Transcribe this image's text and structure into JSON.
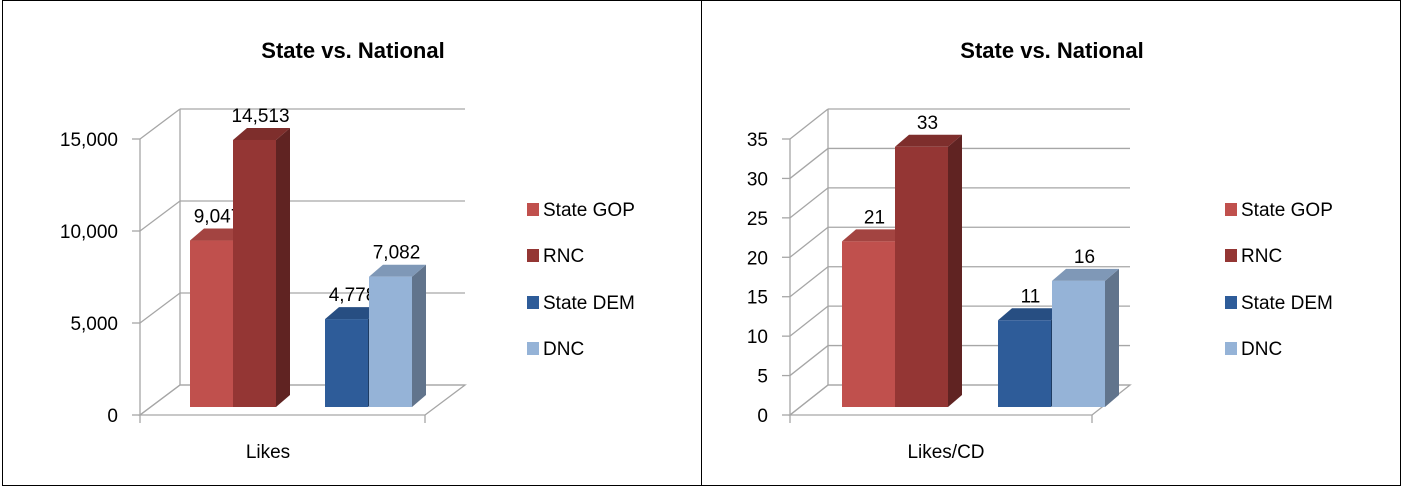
{
  "chart_data": [
    {
      "type": "bar",
      "title": "State vs. National",
      "categories": [
        "Likes"
      ],
      "series": [
        {
          "name": "State GOP",
          "values": [
            9047
          ],
          "label": "9,047",
          "color": "#C0504D"
        },
        {
          "name": "RNC",
          "values": [
            14513
          ],
          "label": "14,513",
          "color": "#943634"
        },
        {
          "name": "State DEM",
          "values": [
            4778
          ],
          "label": "4,778",
          "color": "#2E5C99"
        },
        {
          "name": "DNC",
          "values": [
            7082
          ],
          "label": "7,082",
          "color": "#95B3D7"
        }
      ],
      "ylim": [
        0,
        15000
      ],
      "y_ticks": [
        0,
        5000,
        10000,
        15000
      ],
      "y_tick_labels": [
        "0",
        "5,000",
        "10,000",
        "15,000"
      ],
      "grid": true,
      "legend_position": "right",
      "style": "3d-clustered-column"
    },
    {
      "type": "bar",
      "title": "State vs. National",
      "categories": [
        "Likes/CD"
      ],
      "series": [
        {
          "name": "State GOP",
          "values": [
            21
          ],
          "label": "21",
          "color": "#C0504D"
        },
        {
          "name": "RNC",
          "values": [
            33
          ],
          "label": "33",
          "color": "#943634"
        },
        {
          "name": "State DEM",
          "values": [
            11
          ],
          "label": "11",
          "color": "#2E5C99"
        },
        {
          "name": "DNC",
          "values": [
            16
          ],
          "label": "16",
          "color": "#95B3D7"
        }
      ],
      "ylim": [
        0,
        35
      ],
      "y_ticks": [
        0,
        5,
        10,
        15,
        20,
        25,
        30,
        35
      ],
      "y_tick_labels": [
        "0",
        "5",
        "10",
        "15",
        "20",
        "25",
        "30",
        "35"
      ],
      "grid": true,
      "legend_position": "right",
      "style": "3d-clustered-column"
    }
  ]
}
